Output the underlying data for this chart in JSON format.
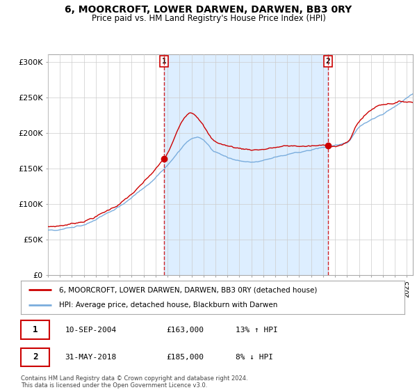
{
  "title": "6, MOORCROFT, LOWER DARWEN, DARWEN, BB3 0RY",
  "subtitle": "Price paid vs. HM Land Registry's House Price Index (HPI)",
  "legend_line1": "6, MOORCROFT, LOWER DARWEN, DARWEN, BB3 0RY (detached house)",
  "legend_line2": "HPI: Average price, detached house, Blackburn with Darwen",
  "annotation1_date": "10-SEP-2004",
  "annotation1_price": "£163,000",
  "annotation1_hpi": "13% ↑ HPI",
  "annotation2_date": "31-MAY-2018",
  "annotation2_price": "£185,000",
  "annotation2_hpi": "8% ↓ HPI",
  "footer": "Contains HM Land Registry data © Crown copyright and database right 2024.\nThis data is licensed under the Open Government Licence v3.0.",
  "ylim": [
    0,
    310000
  ],
  "yticks": [
    0,
    50000,
    100000,
    150000,
    200000,
    250000,
    300000
  ],
  "ytick_labels": [
    "£0",
    "£50K",
    "£100K",
    "£150K",
    "£200K",
    "£250K",
    "£300K"
  ],
  "price_paid_color": "#cc0000",
  "hpi_color": "#7aaddd",
  "shade_color": "#ddeeff",
  "background_color": "#ffffff",
  "grid_color": "#cccccc",
  "annotation_box_color": "#cc0000",
  "sale1_x": 2004.7,
  "sale1_y": 163000,
  "sale2_x": 2018.42,
  "sale2_y": 185000,
  "xmin": 1995,
  "xmax": 2025.5
}
